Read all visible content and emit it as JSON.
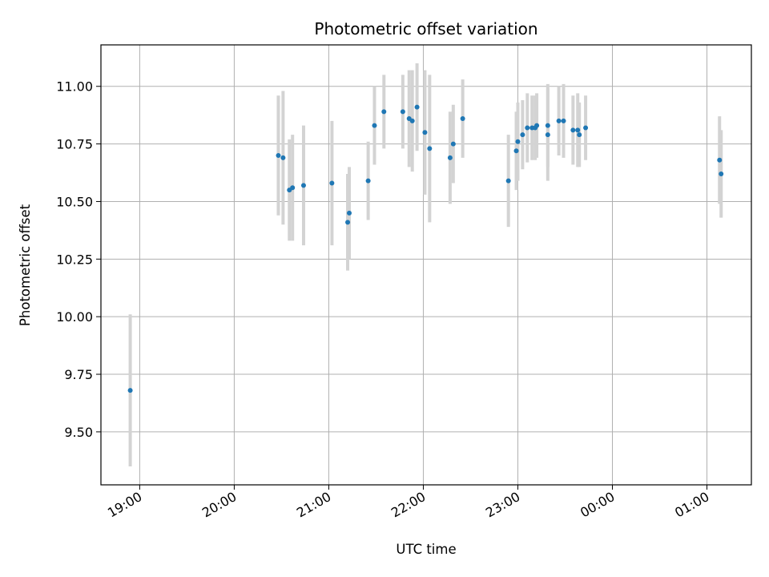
{
  "chart_data": {
    "type": "scatter",
    "title": "Photometric offset variation",
    "xlabel": "UTC time",
    "ylabel": "Photometric offset",
    "x_ticks": [
      "19:00",
      "20:00",
      "21:00",
      "22:00",
      "23:00",
      "00:00",
      "01:00"
    ],
    "y_ticks": [
      "9.50",
      "9.75",
      "10.00",
      "10.25",
      "10.50",
      "10.75",
      "11.00"
    ],
    "ylim": [
      9.27,
      11.18
    ],
    "xlim_hours": [
      18.59,
      25.47
    ],
    "grid": true,
    "marker_color": "#1f77b4",
    "errorbar_color": "#d3d3d3",
    "series": [
      {
        "points": [
          {
            "x": "18:54",
            "y": 9.68,
            "err": 0.33
          },
          {
            "x": "20:28",
            "y": 10.7,
            "err": 0.26
          },
          {
            "x": "20:31",
            "y": 10.69,
            "err": 0.29
          },
          {
            "x": "20:35",
            "y": 10.55,
            "err": 0.22
          },
          {
            "x": "20:37",
            "y": 10.56,
            "err": 0.23
          },
          {
            "x": "20:44",
            "y": 10.57,
            "err": 0.26
          },
          {
            "x": "21:02",
            "y": 10.58,
            "err": 0.27
          },
          {
            "x": "21:12",
            "y": 10.41,
            "err": 0.21
          },
          {
            "x": "21:13",
            "y": 10.45,
            "err": 0.2
          },
          {
            "x": "21:25",
            "y": 10.59,
            "err": 0.17
          },
          {
            "x": "21:29",
            "y": 10.83,
            "err": 0.17
          },
          {
            "x": "21:35",
            "y": 10.89,
            "err": 0.16
          },
          {
            "x": "21:47",
            "y": 10.89,
            "err": 0.16
          },
          {
            "x": "21:51",
            "y": 10.86,
            "err": 0.21
          },
          {
            "x": "21:53",
            "y": 10.85,
            "err": 0.22
          },
          {
            "x": "21:56",
            "y": 10.91,
            "err": 0.19
          },
          {
            "x": "22:01",
            "y": 10.8,
            "err": 0.27
          },
          {
            "x": "22:04",
            "y": 10.73,
            "err": 0.32
          },
          {
            "x": "22:17",
            "y": 10.69,
            "err": 0.2
          },
          {
            "x": "22:19",
            "y": 10.75,
            "err": 0.17
          },
          {
            "x": "22:25",
            "y": 10.86,
            "err": 0.17
          },
          {
            "x": "22:54",
            "y": 10.59,
            "err": 0.2
          },
          {
            "x": "22:59",
            "y": 10.72,
            "err": 0.17
          },
          {
            "x": "23:00",
            "y": 10.76,
            "err": 0.17
          },
          {
            "x": "23:03",
            "y": 10.79,
            "err": 0.15
          },
          {
            "x": "23:06",
            "y": 10.82,
            "err": 0.15
          },
          {
            "x": "23:09",
            "y": 10.82,
            "err": 0.14
          },
          {
            "x": "23:11",
            "y": 10.82,
            "err": 0.14
          },
          {
            "x": "23:12",
            "y": 10.83,
            "err": 0.14
          },
          {
            "x": "23:19",
            "y": 10.83,
            "err": 0.18
          },
          {
            "x": "23:19",
            "y": 10.79,
            "err": 0.2
          },
          {
            "x": "23:26",
            "y": 10.85,
            "err": 0.15
          },
          {
            "x": "23:29",
            "y": 10.85,
            "err": 0.16
          },
          {
            "x": "23:35",
            "y": 10.81,
            "err": 0.15
          },
          {
            "x": "23:38",
            "y": 10.81,
            "err": 0.16
          },
          {
            "x": "23:39",
            "y": 10.79,
            "err": 0.14
          },
          {
            "x": "23:43",
            "y": 10.82,
            "err": 0.14
          },
          {
            "x": "01:08",
            "y": 10.68,
            "err": 0.19
          },
          {
            "x": "01:09",
            "y": 10.62,
            "err": 0.19
          }
        ]
      }
    ]
  }
}
